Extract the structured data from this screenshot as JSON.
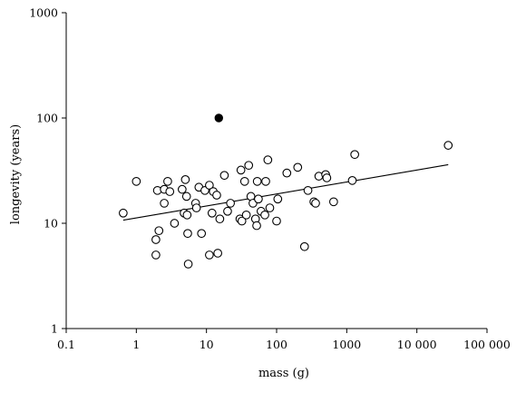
{
  "chart_data": {
    "type": "scatter",
    "title": "",
    "xlabel": "mass (g)",
    "ylabel": "longevity (years)",
    "xscale": "log",
    "yscale": "log",
    "xlim": [
      0.1,
      100000
    ],
    "ylim": [
      1,
      1000
    ],
    "x_ticks": [
      0.1,
      1,
      10,
      100,
      1000,
      10000,
      100000
    ],
    "x_tick_labels": [
      "0.1",
      "1",
      "10",
      "100",
      "1000",
      "10 000",
      "100 000"
    ],
    "y_ticks": [
      1,
      10,
      100,
      1000
    ],
    "y_tick_labels": [
      "1",
      "10",
      "100",
      "1000"
    ],
    "grid": false,
    "legend": "none",
    "series": [
      {
        "marker": "open-circle",
        "points": [
          [
            0.65,
            12.5
          ],
          [
            1.0,
            25.0
          ],
          [
            1.9,
            5.0
          ],
          [
            1.9,
            7.0
          ],
          [
            2.0,
            20.5
          ],
          [
            2.1,
            8.5
          ],
          [
            2.5,
            21.0
          ],
          [
            2.5,
            15.5
          ],
          [
            2.8,
            25.0
          ],
          [
            3.0,
            20.0
          ],
          [
            3.5,
            10.0
          ],
          [
            4.5,
            21.0
          ],
          [
            4.8,
            12.5
          ],
          [
            5.0,
            26.0
          ],
          [
            5.2,
            18.0
          ],
          [
            5.3,
            12.0
          ],
          [
            5.4,
            8.0
          ],
          [
            5.5,
            4.1
          ],
          [
            7.0,
            15.5
          ],
          [
            7.2,
            14.0
          ],
          [
            7.8,
            22.0
          ],
          [
            8.5,
            8.0
          ],
          [
            9.5,
            20.5
          ],
          [
            11.0,
            23.0
          ],
          [
            11.0,
            5.0
          ],
          [
            12.0,
            12.5
          ],
          [
            12.5,
            20.0
          ],
          [
            14.0,
            18.5
          ],
          [
            14.5,
            5.2
          ],
          [
            15.5,
            11.0
          ],
          [
            18.0,
            28.5
          ],
          [
            20.0,
            13.0
          ],
          [
            22.0,
            15.5
          ],
          [
            30.0,
            11.0
          ],
          [
            31.0,
            32.0
          ],
          [
            32.0,
            10.5
          ],
          [
            35.0,
            25.0
          ],
          [
            37.0,
            12.0
          ],
          [
            40.0,
            35.5
          ],
          [
            43.0,
            18.0
          ],
          [
            46.0,
            15.5
          ],
          [
            50.0,
            11.0
          ],
          [
            52.0,
            9.5
          ],
          [
            53.0,
            25.0
          ],
          [
            55.0,
            17.0
          ],
          [
            60.0,
            13.0
          ],
          [
            68.0,
            12.0
          ],
          [
            70.0,
            25.0
          ],
          [
            75.0,
            40.0
          ],
          [
            80.0,
            14.0
          ],
          [
            100.0,
            10.5
          ],
          [
            104.0,
            17.0
          ],
          [
            140.0,
            30.0
          ],
          [
            200.0,
            34.0
          ],
          [
            250.0,
            6.0
          ],
          [
            280.0,
            20.5
          ],
          [
            340.0,
            16.0
          ],
          [
            360.0,
            15.5
          ],
          [
            400.0,
            28.0
          ],
          [
            500.0,
            29.0
          ],
          [
            520.0,
            27.0
          ],
          [
            650.0,
            16.0
          ],
          [
            1200.0,
            25.5
          ],
          [
            1300.0,
            45.0
          ],
          [
            28000.0,
            55.0
          ]
        ]
      },
      {
        "marker": "filled-circle",
        "points": [
          [
            15.0,
            100.0
          ]
        ]
      }
    ],
    "trendline": {
      "type": "linear-log-log",
      "x": [
        0.65,
        28000.0
      ],
      "y": [
        10.7,
        36.0
      ]
    }
  }
}
